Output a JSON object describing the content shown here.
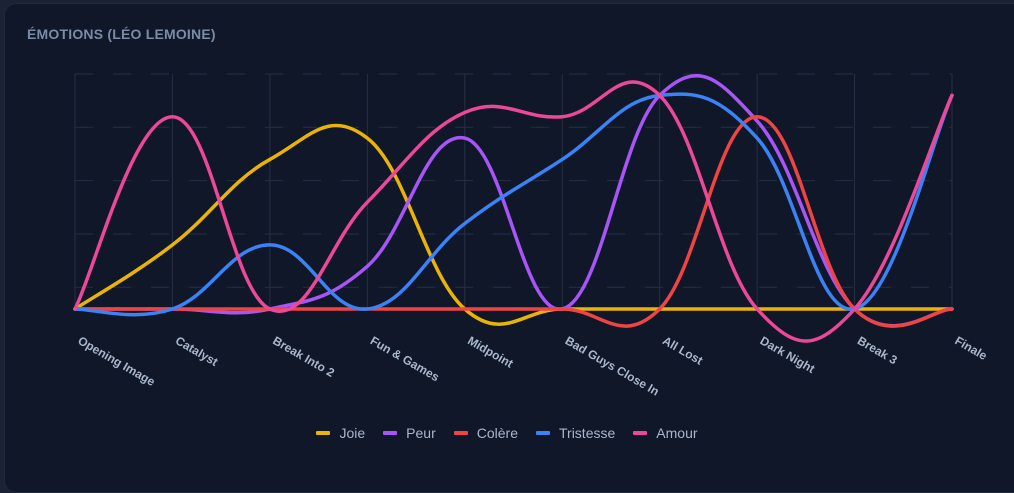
{
  "card": {
    "title": "ÉMOTIONS (LÉO LEMOINE)"
  },
  "legend": [
    {
      "label": "Joie",
      "color": "#eab308"
    },
    {
      "label": "Peur",
      "color": "#a855f7"
    },
    {
      "label": "Colère",
      "color": "#ef4444"
    },
    {
      "label": "Tristesse",
      "color": "#3b82f6"
    },
    {
      "label": "Amour",
      "color": "#ec4899"
    }
  ],
  "chart_data": {
    "type": "line",
    "title": "ÉMOTIONS (LÉO LEMOINE)",
    "xlabel": "",
    "ylabel": "",
    "categories": [
      "Opening Image",
      "Catalyst",
      "Break Into 2",
      "Fun & Games",
      "Midpoint",
      "Bad Guys Close In",
      "All Lost",
      "Dark Night",
      "Break 3",
      "Finale"
    ],
    "series": [
      {
        "name": "Joie",
        "color": "#eab308",
        "values": [
          0,
          30,
          70,
          80,
          0,
          0,
          0,
          0,
          0,
          0
        ]
      },
      {
        "name": "Peur",
        "color": "#a855f7",
        "values": [
          0,
          0,
          0,
          20,
          80,
          0,
          100,
          88,
          0,
          0
        ]
      },
      {
        "name": "Colère",
        "color": "#ef4444",
        "values": [
          0,
          0,
          0,
          0,
          0,
          0,
          0,
          90,
          0,
          0
        ]
      },
      {
        "name": "Tristesse",
        "color": "#3b82f6",
        "values": [
          0,
          0,
          30,
          0,
          40,
          70,
          100,
          80,
          0,
          100
        ]
      },
      {
        "name": "Amour",
        "color": "#ec4899",
        "values": [
          0,
          90,
          0,
          50,
          92,
          90,
          100,
          0,
          0,
          100
        ]
      }
    ],
    "ylim": [
      0,
      110
    ],
    "grid": true,
    "y_ticks_visible": false,
    "legend_position": "bottom",
    "interpolation": "smooth"
  }
}
